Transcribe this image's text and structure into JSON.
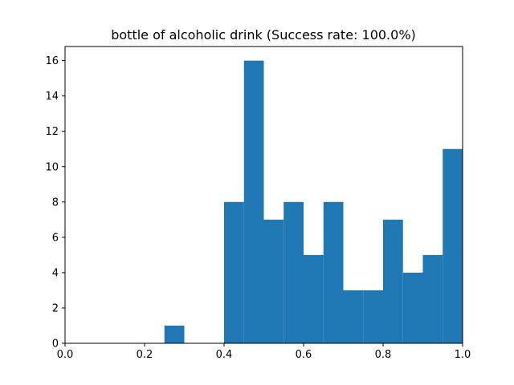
{
  "chart_data": {
    "type": "bar",
    "title": "bottle of alcoholic drink (Success rate: 100.0%)",
    "xlabel": "",
    "ylabel": "",
    "bin_edges": [
      0.0,
      0.05,
      0.1,
      0.15,
      0.2,
      0.25,
      0.3,
      0.35,
      0.4,
      0.45,
      0.5,
      0.55,
      0.6,
      0.65,
      0.7,
      0.75,
      0.8,
      0.85,
      0.9,
      0.95,
      1.0
    ],
    "values": [
      0,
      0,
      0,
      0,
      0,
      1,
      0,
      0,
      8,
      16,
      7,
      8,
      5,
      8,
      3,
      3,
      7,
      4,
      5,
      11
    ],
    "xlim": [
      0.0,
      1.0
    ],
    "ylim": [
      0,
      16.8
    ],
    "xticks": [
      "0.0",
      "0.2",
      "0.4",
      "0.6",
      "0.8",
      "1.0"
    ],
    "yticks": [
      "0",
      "2",
      "4",
      "6",
      "8",
      "10",
      "12",
      "14",
      "16"
    ],
    "grid": false,
    "bar_color": "#1f77b4"
  }
}
